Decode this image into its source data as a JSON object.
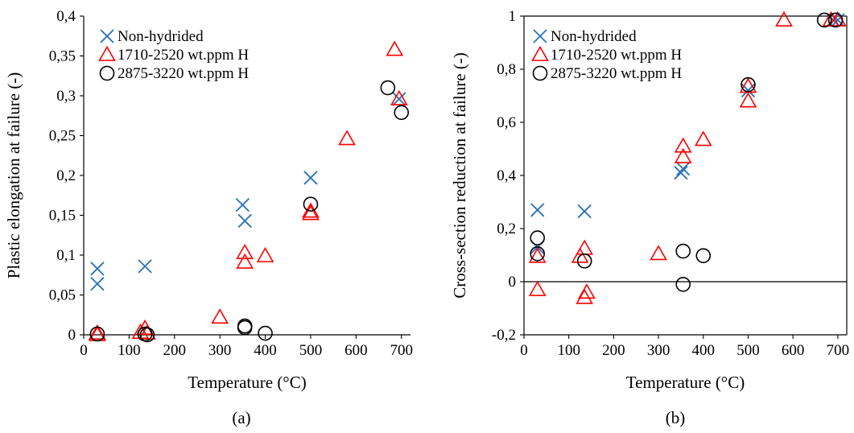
{
  "colors": {
    "non_hydrided": "#2E75B6",
    "mid_h": "#FF0000",
    "high_h": "#000000",
    "axis": "#000000"
  },
  "chart_data": [
    {
      "type": "scatter",
      "panel_label": "(a)",
      "xlabel": "Temperature (°C)",
      "ylabel": "Plastic elongation at failure (-)",
      "xlim": [
        0,
        720
      ],
      "ylim": [
        0,
        0.4
      ],
      "xticks": [
        0,
        100,
        200,
        300,
        400,
        500,
        600,
        700
      ],
      "xtick_labels": [
        "0",
        "100",
        "200",
        "300",
        "400",
        "500",
        "600",
        "700"
      ],
      "yticks": [
        0,
        0.05,
        0.1,
        0.15,
        0.2,
        0.25,
        0.3,
        0.35,
        0.4
      ],
      "ytick_labels": [
        "0",
        "0,05",
        "0,1",
        "0,15",
        "0,2",
        "0,25",
        "0,3",
        "0,35",
        "0,4"
      ],
      "grid": false,
      "legend_position": "top-left",
      "series": [
        {
          "name": "Non-hydrided",
          "marker": "x",
          "color_key": "non_hydrided",
          "x": [
            30,
            30,
            135,
            350,
            355,
            500,
            695
          ],
          "y": [
            0.083,
            0.064,
            0.086,
            0.163,
            0.143,
            0.197,
            0.296
          ]
        },
        {
          "name": "1710-2520 wt.ppm H",
          "marker": "triangle",
          "color_key": "mid_h",
          "x": [
            30,
            30,
            125,
            135,
            140,
            300,
            355,
            355,
            400,
            500,
            500,
            580,
            685,
            695
          ],
          "y": [
            0.0,
            0.002,
            0.003,
            0.008,
            0.002,
            0.022,
            0.103,
            0.091,
            0.099,
            0.155,
            0.152,
            0.246,
            0.358,
            0.296
          ]
        },
        {
          "name": "2875-3220 wt.ppm H",
          "marker": "circle",
          "color_key": "high_h",
          "x": [
            30,
            135,
            140,
            355,
            355,
            400,
            500,
            670,
            700
          ],
          "y": [
            0.001,
            0.001,
            0.0,
            0.011,
            0.009,
            0.002,
            0.164,
            0.31,
            0.279
          ]
        }
      ]
    },
    {
      "type": "scatter",
      "panel_label": "(b)",
      "xlabel": "Temperature (°C)",
      "ylabel": "Cross-section reduction at failure (-)",
      "xlim": [
        0,
        720
      ],
      "ylim": [
        -0.2,
        1.0
      ],
      "xticks": [
        0,
        100,
        200,
        300,
        400,
        500,
        600,
        700
      ],
      "xtick_labels": [
        "0",
        "100",
        "200",
        "300",
        "400",
        "500",
        "600",
        "700"
      ],
      "yticks": [
        -0.2,
        0,
        0.2,
        0.4,
        0.6,
        0.8,
        1
      ],
      "ytick_labels": [
        "-0,2",
        "0",
        "0,2",
        "0,4",
        "0,6",
        "0,8",
        "1"
      ],
      "grid": false,
      "zero_line": true,
      "legend_position": "top-left",
      "series": [
        {
          "name": "Non-hydrided",
          "marker": "x",
          "color_key": "non_hydrided",
          "x": [
            30,
            30,
            135,
            350,
            355,
            500,
            690,
            700
          ],
          "y": [
            0.27,
            0.13,
            0.265,
            0.41,
            0.425,
            0.72,
            0.985,
            0.985
          ]
        },
        {
          "name": "1710-2520 wt.ppm H",
          "marker": "triangle",
          "color_key": "mid_h",
          "x": [
            30,
            30,
            125,
            135,
            135,
            140,
            300,
            355,
            355,
            400,
            500,
            500,
            580,
            685,
            700
          ],
          "y": [
            0.095,
            -0.03,
            0.095,
            0.125,
            -0.06,
            -0.04,
            0.105,
            0.51,
            0.47,
            0.535,
            0.68,
            0.735,
            0.985,
            0.985,
            0.985
          ]
        },
        {
          "name": "2875-3220 wt.ppm H",
          "marker": "circle",
          "color_key": "high_h",
          "x": [
            30,
            30,
            135,
            355,
            355,
            400,
            500,
            670,
            695
          ],
          "y": [
            0.165,
            0.105,
            0.078,
            0.115,
            -0.01,
            0.098,
            0.742,
            0.985,
            0.985
          ]
        }
      ]
    }
  ]
}
